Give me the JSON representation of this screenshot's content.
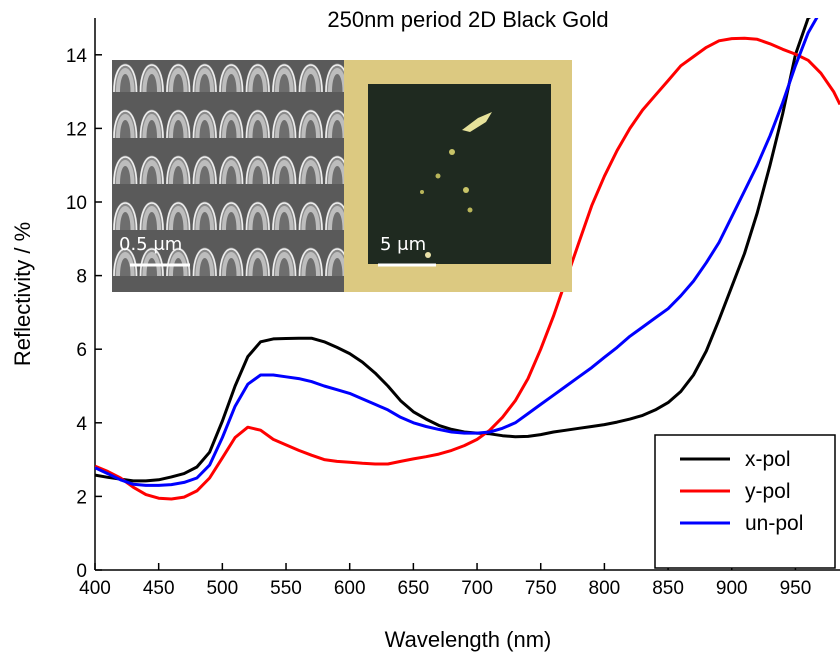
{
  "chart_data": {
    "type": "line",
    "title": "250nm period 2D Black Gold",
    "xlabel": "Wavelength (nm)",
    "ylabel": "Reflectivity / %",
    "xlim": [
      400,
      985
    ],
    "ylim": [
      0,
      15
    ],
    "xticks": [
      400,
      450,
      500,
      550,
      600,
      650,
      700,
      750,
      800,
      850,
      900,
      950
    ],
    "yticks": [
      0,
      2,
      4,
      6,
      8,
      10,
      12,
      14
    ],
    "grid": false,
    "legend_position": "bottom-right",
    "series": [
      {
        "name": "x-pol",
        "color": "#000000",
        "x": [
          400,
          410,
          420,
          430,
          440,
          450,
          460,
          470,
          480,
          490,
          500,
          510,
          520,
          530,
          540,
          550,
          560,
          570,
          580,
          590,
          600,
          610,
          620,
          630,
          640,
          650,
          660,
          670,
          680,
          690,
          700,
          710,
          720,
          730,
          740,
          750,
          760,
          770,
          780,
          790,
          800,
          810,
          820,
          830,
          840,
          850,
          860,
          870,
          880,
          890,
          900,
          910,
          920,
          930,
          940,
          950,
          960,
          970
        ],
        "y": [
          2.58,
          2.52,
          2.47,
          2.42,
          2.42,
          2.45,
          2.53,
          2.62,
          2.8,
          3.2,
          4.05,
          5.0,
          5.8,
          6.2,
          6.28,
          6.29,
          6.3,
          6.3,
          6.2,
          6.05,
          5.88,
          5.65,
          5.35,
          5.0,
          4.6,
          4.3,
          4.1,
          3.93,
          3.82,
          3.75,
          3.72,
          3.7,
          3.65,
          3.62,
          3.63,
          3.68,
          3.75,
          3.8,
          3.85,
          3.9,
          3.95,
          4.02,
          4.1,
          4.2,
          4.35,
          4.55,
          4.85,
          5.3,
          5.95,
          6.8,
          7.7,
          8.6,
          9.7,
          11.0,
          12.4,
          14.0,
          15.0,
          15.2
        ]
      },
      {
        "name": "y-pol",
        "color": "#ff0000",
        "x": [
          400,
          410,
          420,
          430,
          440,
          450,
          460,
          470,
          480,
          490,
          500,
          510,
          520,
          530,
          540,
          550,
          560,
          570,
          580,
          590,
          600,
          610,
          620,
          630,
          640,
          650,
          660,
          670,
          680,
          690,
          700,
          710,
          720,
          730,
          740,
          750,
          760,
          770,
          780,
          790,
          800,
          810,
          820,
          830,
          840,
          850,
          860,
          870,
          880,
          890,
          900,
          910,
          920,
          930,
          940,
          950,
          960,
          970,
          980,
          985
        ],
        "y": [
          2.82,
          2.68,
          2.5,
          2.25,
          2.05,
          1.95,
          1.93,
          1.98,
          2.15,
          2.5,
          3.05,
          3.6,
          3.88,
          3.8,
          3.55,
          3.4,
          3.25,
          3.12,
          3.0,
          2.95,
          2.93,
          2.9,
          2.88,
          2.88,
          2.95,
          3.02,
          3.08,
          3.15,
          3.25,
          3.38,
          3.55,
          3.8,
          4.15,
          4.6,
          5.2,
          6.0,
          6.9,
          7.9,
          8.9,
          9.9,
          10.7,
          11.4,
          12.0,
          12.5,
          12.9,
          13.3,
          13.7,
          13.95,
          14.2,
          14.38,
          14.44,
          14.45,
          14.42,
          14.3,
          14.15,
          14.02,
          13.85,
          13.5,
          13.0,
          12.65
        ]
      },
      {
        "name": "un-pol",
        "color": "#0000ff",
        "x": [
          400,
          410,
          420,
          430,
          440,
          450,
          460,
          470,
          480,
          490,
          500,
          510,
          520,
          530,
          540,
          550,
          560,
          570,
          580,
          590,
          600,
          610,
          620,
          630,
          640,
          650,
          660,
          670,
          680,
          690,
          700,
          710,
          720,
          730,
          740,
          750,
          760,
          770,
          780,
          790,
          800,
          810,
          820,
          830,
          840,
          850,
          860,
          870,
          880,
          890,
          900,
          910,
          920,
          930,
          940,
          950,
          960,
          970
        ],
        "y": [
          2.78,
          2.62,
          2.45,
          2.33,
          2.3,
          2.3,
          2.32,
          2.38,
          2.5,
          2.85,
          3.6,
          4.45,
          5.05,
          5.3,
          5.3,
          5.25,
          5.2,
          5.12,
          5.0,
          4.9,
          4.8,
          4.65,
          4.5,
          4.35,
          4.15,
          4.0,
          3.9,
          3.82,
          3.75,
          3.72,
          3.72,
          3.75,
          3.85,
          4.0,
          4.25,
          4.5,
          4.75,
          5.0,
          5.25,
          5.5,
          5.78,
          6.05,
          6.35,
          6.6,
          6.85,
          7.1,
          7.45,
          7.85,
          8.35,
          8.9,
          9.6,
          10.3,
          11.0,
          11.8,
          12.7,
          13.7,
          14.6,
          15.2
        ]
      }
    ],
    "insets": [
      {
        "kind": "sem-image",
        "scale_bar_label": "0.5 μm"
      },
      {
        "kind": "optical-image",
        "scale_bar_label": "5 μm"
      }
    ]
  }
}
